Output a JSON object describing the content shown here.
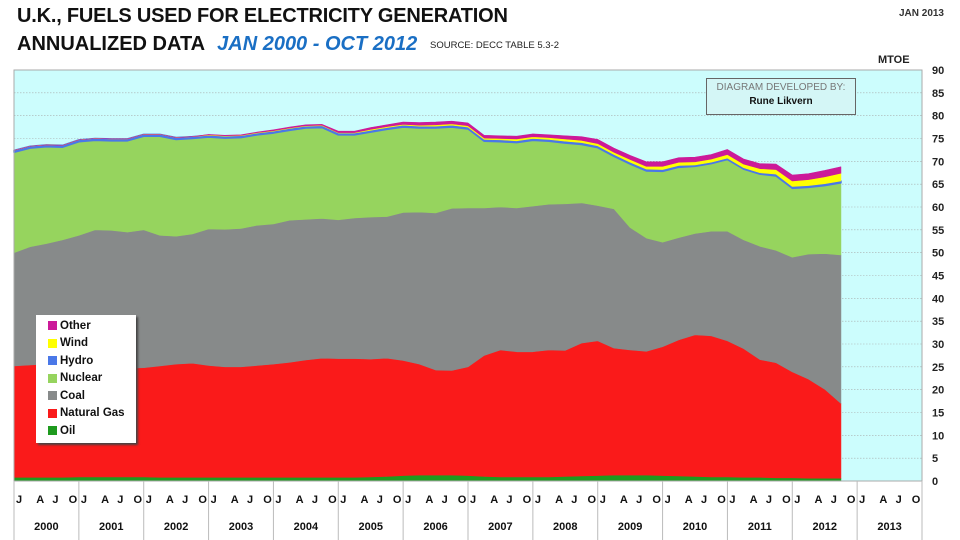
{
  "header": {
    "title_line1": "U.K., FUELS USED FOR ELECTRICITY GENERATION",
    "title_line2": "ANNUALIZED DATA",
    "range": "JAN  2000 - OCT 2012",
    "source": "SOURCE: DECC  TABLE 5.3-2",
    "date": "JAN 2013",
    "unit": "MTOE"
  },
  "credit": {
    "line1": "DIAGRAM DEVELOPED BY:",
    "line2": "Rune Likvern"
  },
  "chart_data": {
    "type": "area",
    "stacked": true,
    "title": "U.K., FUELS USED FOR ELECTRICITY GENERATION — ANNUALIZED DATA JAN 2000 - OCT 2012",
    "ylabel": "MTOE",
    "ylim": [
      0,
      90
    ],
    "yticks": [
      0,
      5,
      10,
      15,
      20,
      25,
      30,
      35,
      40,
      45,
      50,
      55,
      60,
      65,
      70,
      75,
      80,
      85,
      90
    ],
    "grid": true,
    "legend_position": "bottom-left",
    "x_years": [
      "2000",
      "2001",
      "2002",
      "2003",
      "2004",
      "2005",
      "2006",
      "2007",
      "2008",
      "2009",
      "2010",
      "2011",
      "2012",
      "2013"
    ],
    "x_month_ticks": [
      "J",
      "A",
      "J",
      "O"
    ],
    "x_range": [
      "2000-01",
      "2013-12"
    ],
    "x": [
      "2000-01",
      "2000-04",
      "2000-07",
      "2000-10",
      "2001-01",
      "2001-04",
      "2001-07",
      "2001-10",
      "2002-01",
      "2002-04",
      "2002-07",
      "2002-10",
      "2003-01",
      "2003-04",
      "2003-07",
      "2003-10",
      "2004-01",
      "2004-04",
      "2004-07",
      "2004-10",
      "2005-01",
      "2005-04",
      "2005-07",
      "2005-10",
      "2006-01",
      "2006-04",
      "2006-07",
      "2006-10",
      "2007-01",
      "2007-04",
      "2007-07",
      "2007-10",
      "2008-01",
      "2008-04",
      "2008-07",
      "2008-10",
      "2009-01",
      "2009-04",
      "2009-07",
      "2009-10",
      "2010-01",
      "2010-04",
      "2010-07",
      "2010-10",
      "2011-01",
      "2011-04",
      "2011-07",
      "2011-10",
      "2012-01",
      "2012-04",
      "2012-07",
      "2012-10"
    ],
    "series": [
      {
        "name": "Oil",
        "color": "#1e9a1e",
        "values": [
          0.8,
          0.8,
          0.8,
          0.8,
          0.9,
          0.9,
          0.9,
          0.9,
          0.9,
          0.8,
          0.8,
          0.8,
          0.8,
          0.8,
          0.8,
          0.8,
          0.8,
          0.8,
          0.8,
          0.8,
          0.8,
          0.8,
          0.9,
          1.0,
          1.2,
          1.3,
          1.3,
          1.3,
          1.2,
          1.0,
          0.9,
          0.9,
          0.9,
          0.9,
          1.0,
          1.1,
          1.2,
          1.3,
          1.3,
          1.3,
          1.2,
          1.1,
          1.0,
          0.9,
          0.9,
          0.8,
          0.8,
          0.7,
          0.7,
          0.6,
          0.6,
          0.6
        ]
      },
      {
        "name": "Natural Gas",
        "color": "#fa1a1a",
        "values": [
          24.4,
          24.6,
          24.8,
          24.4,
          23.8,
          23.7,
          23.7,
          23.8,
          23.9,
          24.4,
          24.8,
          25.0,
          24.5,
          24.2,
          24.2,
          24.5,
          24.8,
          25.2,
          25.7,
          26.1,
          26.0,
          26.0,
          25.8,
          25.9,
          25.2,
          24.3,
          23.0,
          22.9,
          23.8,
          26.5,
          27.8,
          27.4,
          27.4,
          27.8,
          27.6,
          29.1,
          29.5,
          27.8,
          27.4,
          27.1,
          28.2,
          29.8,
          31.0,
          30.9,
          29.8,
          28.2,
          25.8,
          25.2,
          23.2,
          21.7,
          19.5,
          16.4
        ]
      },
      {
        "name": "Coal",
        "color": "#878a8a",
        "values": [
          24.8,
          25.9,
          26.4,
          27.6,
          29.1,
          30.4,
          30.3,
          29.8,
          30.2,
          28.6,
          28.0,
          28.3,
          29.9,
          30.1,
          30.3,
          30.7,
          30.7,
          31.1,
          30.8,
          30.6,
          30.4,
          30.8,
          31.1,
          31.0,
          32.4,
          33.3,
          34.4,
          35.5,
          34.8,
          32.3,
          31.3,
          31.5,
          31.9,
          31.9,
          32.1,
          30.7,
          29.6,
          30.5,
          26.8,
          24.8,
          22.9,
          22.4,
          22.2,
          22.9,
          24.0,
          23.8,
          24.8,
          24.6,
          25.1,
          27.4,
          29.7,
          32.5
        ]
      },
      {
        "name": "Nuclear",
        "color": "#96d45e",
        "values": [
          22.0,
          21.6,
          21.2,
          20.3,
          20.5,
          19.6,
          19.6,
          20.0,
          20.5,
          21.7,
          21.2,
          20.9,
          20.1,
          20.0,
          19.9,
          19.8,
          19.9,
          19.7,
          20.0,
          19.9,
          18.6,
          18.2,
          18.6,
          19.1,
          18.7,
          18.4,
          18.6,
          17.8,
          17.3,
          14.6,
          14.3,
          14.3,
          14.4,
          13.8,
          13.3,
          12.8,
          12.7,
          11.5,
          13.9,
          14.7,
          15.5,
          15.4,
          14.7,
          14.8,
          15.7,
          15.5,
          15.8,
          16.3,
          15.1,
          14.6,
          14.9,
          15.8
        ]
      },
      {
        "name": "Hydro",
        "color": "#4a78e8",
        "values": [
          0.4,
          0.4,
          0.4,
          0.4,
          0.4,
          0.4,
          0.4,
          0.4,
          0.4,
          0.4,
          0.4,
          0.4,
          0.4,
          0.4,
          0.4,
          0.4,
          0.4,
          0.4,
          0.4,
          0.4,
          0.4,
          0.4,
          0.4,
          0.4,
          0.4,
          0.4,
          0.4,
          0.4,
          0.4,
          0.4,
          0.4,
          0.4,
          0.4,
          0.4,
          0.4,
          0.4,
          0.4,
          0.4,
          0.4,
          0.4,
          0.4,
          0.4,
          0.3,
          0.3,
          0.3,
          0.3,
          0.3,
          0.4,
          0.4,
          0.4,
          0.4,
          0.4
        ]
      },
      {
        "name": "Wind",
        "color": "#ffff00",
        "values": [
          0.0,
          0.0,
          0.0,
          0.0,
          0.0,
          0.0,
          0.0,
          0.0,
          0.0,
          0.0,
          0.0,
          0.0,
          0.1,
          0.1,
          0.1,
          0.1,
          0.1,
          0.1,
          0.1,
          0.1,
          0.1,
          0.1,
          0.2,
          0.2,
          0.2,
          0.2,
          0.3,
          0.3,
          0.3,
          0.3,
          0.3,
          0.4,
          0.4,
          0.4,
          0.5,
          0.5,
          0.5,
          0.5,
          0.6,
          0.6,
          0.7,
          0.7,
          0.7,
          0.7,
          0.8,
          0.8,
          0.9,
          1.0,
          1.2,
          1.3,
          1.5,
          1.7
        ]
      },
      {
        "name": "Other",
        "color": "#cc1a99",
        "values": [
          0.0,
          0.0,
          0.0,
          0.0,
          0.0,
          0.0,
          0.0,
          0.0,
          0.0,
          0.0,
          0.0,
          0.0,
          0.1,
          0.1,
          0.1,
          0.1,
          0.2,
          0.2,
          0.2,
          0.2,
          0.3,
          0.3,
          0.4,
          0.4,
          0.5,
          0.6,
          0.6,
          0.6,
          0.6,
          0.6,
          0.6,
          0.6,
          0.6,
          0.6,
          0.7,
          0.8,
          0.9,
          0.9,
          0.9,
          1.0,
          1.0,
          1.0,
          1.0,
          1.0,
          1.1,
          1.1,
          1.1,
          1.2,
          1.3,
          1.3,
          1.4,
          1.4
        ]
      }
    ]
  },
  "legend": {
    "items": [
      {
        "label": "Other",
        "color": "#cc1a99"
      },
      {
        "label": "Wind",
        "color": "#ffff00"
      },
      {
        "label": "Hydro",
        "color": "#4a78e8"
      },
      {
        "label": "Nuclear",
        "color": "#96d45e"
      },
      {
        "label": "Coal",
        "color": "#878a8a"
      },
      {
        "label": "Natural Gas",
        "color": "#fa1a1a"
      },
      {
        "label": "Oil",
        "color": "#1e9a1e"
      }
    ]
  },
  "colors": {
    "plot_background": "#ccfdfd",
    "title_accent": "#1a6fc4"
  }
}
